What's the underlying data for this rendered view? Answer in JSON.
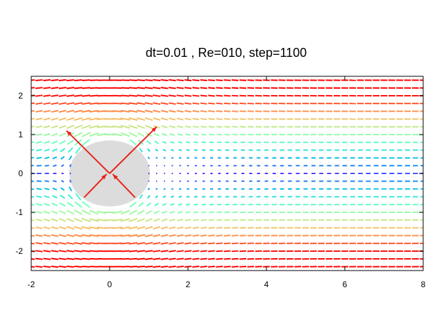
{
  "chart_data": {
    "type": "vector-field",
    "title": "dt=0.01 , Re=010, step=1100",
    "xlabel": "",
    "ylabel": "",
    "xlim": [
      -2,
      8
    ],
    "ylim": [
      -2.5,
      2.5
    ],
    "x_ticks": [
      "-2",
      "0",
      "2",
      "4",
      "6",
      "8"
    ],
    "y_ticks": [
      "2",
      "1",
      "0",
      "-1",
      "-2"
    ],
    "grid": false,
    "legend": "none",
    "field": {
      "grid_x": [
        -2,
        8,
        0.2
      ],
      "grid_y": [
        -2.4,
        2.4,
        0.2
      ],
      "free_stream_speed": 1.0,
      "body_radius": 1.0,
      "obstacle": {
        "shape": "circle",
        "center": [
          0,
          0
        ],
        "radius": 1.0
      },
      "colormap": "rainbow (blue = slow, red = fast)"
    },
    "force_vectors": [
      {
        "from": [
          0,
          0
        ],
        "to": [
          1.2,
          1.2
        ],
        "color": "#e8241a"
      },
      {
        "from": [
          0,
          0
        ],
        "to": [
          -1.1,
          1.1
        ],
        "color": "#e8241a"
      },
      {
        "from": [
          0.65,
          -0.62
        ],
        "to": [
          0.08,
          -0.02
        ],
        "color": "#e8241a"
      },
      {
        "from": [
          -0.65,
          -0.62
        ],
        "to": [
          -0.08,
          -0.02
        ],
        "color": "#e8241a"
      }
    ],
    "colors": {
      "slow": "#8000ff",
      "medium": "#00c8e0",
      "fast": "#f03010",
      "obstacle": "#dcdcdc",
      "force_arrow": "#e8241a"
    }
  }
}
